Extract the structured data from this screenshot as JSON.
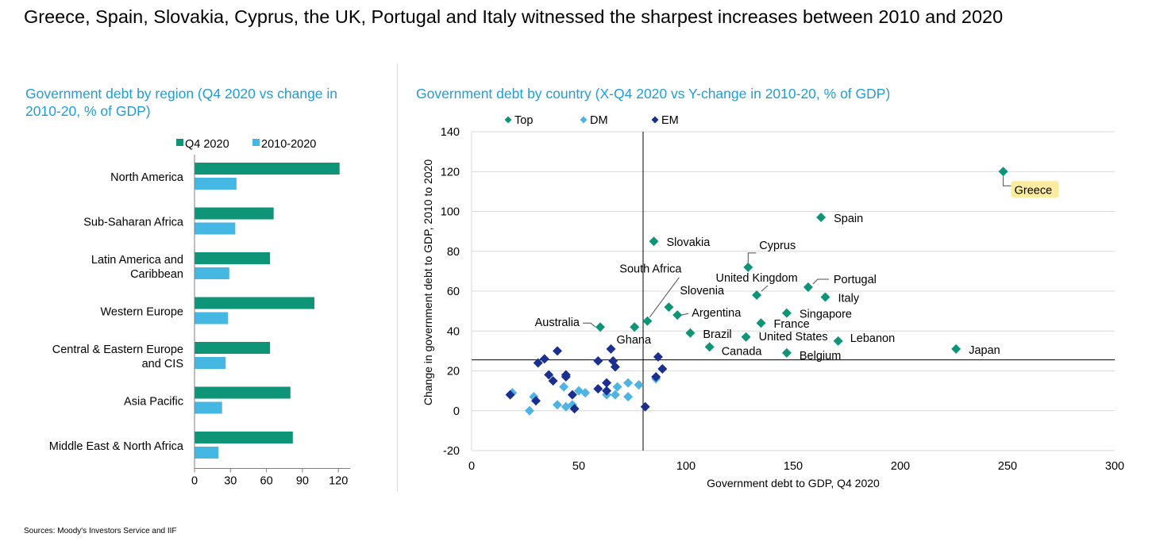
{
  "headline": "Greece, Spain, Slovakia, Cyprus, the UK, Portugal and Italy witnessed the sharpest increases between 2010 and 2020",
  "source": "Sources: Moody's Investors Service and IIF",
  "colors": {
    "top": "#0e9577",
    "dm": "#4fb3e4",
    "em": "#1a2f8f",
    "q4": "#0e9577",
    "change": "#44b7e3",
    "greece_bg": "#fbeca0"
  },
  "chart_data": [
    {
      "type": "bar",
      "title": "Government debt by region (Q4 2020 vs change in 2010-20, % of GDP)",
      "categories": [
        "North America",
        "Sub-Saharan Africa",
        "Latin America and Caribbean",
        "Western Europe",
        "Central & Eastern Europe and CIS",
        "Asia Pacific",
        "Middle East & North Africa"
      ],
      "category_lines": [
        [
          "North America"
        ],
        [
          "Sub-Saharan Africa"
        ],
        [
          "Latin America and",
          "Caribbean"
        ],
        [
          "Western Europe"
        ],
        [
          "Central & Eastern Europe",
          "and CIS"
        ],
        [
          "Asia Pacific"
        ],
        [
          "Middle East & North Africa"
        ]
      ],
      "series": [
        {
          "name": "Q4 2020",
          "values": [
            121,
            66,
            63,
            100,
            63,
            80,
            82
          ]
        },
        {
          "name": "2010-2020",
          "values": [
            35,
            34,
            29,
            28,
            26,
            23,
            20
          ]
        }
      ],
      "xlim": [
        0,
        130
      ],
      "xticks": [
        "0",
        "30",
        "60",
        "90",
        "120"
      ],
      "xtick_values": [
        0,
        30,
        60,
        90,
        120
      ],
      "legend_position": "top"
    },
    {
      "type": "scatter",
      "title": "Government debt by country (X-Q4 2020 vs Y-change in 2010-20, % of GDP)",
      "xlabel": "Government debt to GDP, Q4 2020",
      "ylabel": "Change in government debt to GDP, 2010 to 2020",
      "xlim": [
        0,
        300
      ],
      "ylim": [
        -20,
        140
      ],
      "xticks": [
        "0",
        "50",
        "100",
        "150",
        "200",
        "250",
        "300"
      ],
      "xtick_values": [
        0,
        50,
        100,
        150,
        200,
        250,
        300
      ],
      "yticks": [
        "-20",
        "0",
        "20",
        "40",
        "60",
        "80",
        "100",
        "120",
        "140"
      ],
      "ytick_values": [
        -20,
        0,
        20,
        40,
        60,
        80,
        100,
        120,
        140
      ],
      "reference_lines": {
        "x": 80,
        "y": 25.5
      },
      "legend": [
        "Top",
        "DM",
        "EM"
      ],
      "series": [
        {
          "name": "Top",
          "points": [
            {
              "x": 248,
              "y": 120,
              "label": "Greece"
            },
            {
              "x": 163,
              "y": 97,
              "label": "Spain"
            },
            {
              "x": 85,
              "y": 85,
              "label": "Slovakia"
            },
            {
              "x": 129,
              "y": 72,
              "label": "Cyprus"
            },
            {
              "x": 157,
              "y": 62,
              "label": "Portugal"
            },
            {
              "x": 133,
              "y": 58,
              "label": "United Kingdom"
            },
            {
              "x": 165,
              "y": 57,
              "label": "Italy"
            },
            {
              "x": 92,
              "y": 52,
              "label": "Slovenia"
            },
            {
              "x": 147,
              "y": 49,
              "label": "Singapore"
            },
            {
              "x": 96,
              "y": 48,
              "label": "Argentina"
            },
            {
              "x": 82,
              "y": 45,
              "label": "South Africa"
            },
            {
              "x": 135,
              "y": 44,
              "label": "France"
            },
            {
              "x": 60,
              "y": 42,
              "label": "Australia"
            },
            {
              "x": 76,
              "y": 42,
              "label": ""
            },
            {
              "x": 102,
              "y": 39,
              "label": "Brazil"
            },
            {
              "x": 128,
              "y": 37,
              "label": "United States"
            },
            {
              "x": 171,
              "y": 35,
              "label": "Lebanon"
            },
            {
              "x": 111,
              "y": 32,
              "label": "Canada"
            },
            {
              "x": 226,
              "y": 31,
              "label": "Japan"
            },
            {
              "x": 147,
              "y": 29,
              "label": "Belgium"
            }
          ]
        },
        {
          "name": "DM",
          "points": [
            {
              "x": 19,
              "y": 9
            },
            {
              "x": 27,
              "y": 0
            },
            {
              "x": 29,
              "y": 7
            },
            {
              "x": 40,
              "y": 3
            },
            {
              "x": 43,
              "y": 12
            },
            {
              "x": 44,
              "y": 2
            },
            {
              "x": 47,
              "y": 3
            },
            {
              "x": 50,
              "y": 10
            },
            {
              "x": 53,
              "y": 9
            },
            {
              "x": 63,
              "y": 8
            },
            {
              "x": 67,
              "y": 8
            },
            {
              "x": 68,
              "y": 12
            },
            {
              "x": 73,
              "y": 14
            },
            {
              "x": 73,
              "y": 7
            },
            {
              "x": 78,
              "y": 13
            },
            {
              "x": 86,
              "y": 16
            }
          ]
        },
        {
          "name": "EM",
          "points": [
            {
              "x": 18,
              "y": 8
            },
            {
              "x": 30,
              "y": 5
            },
            {
              "x": 31,
              "y": 24
            },
            {
              "x": 34,
              "y": 26
            },
            {
              "x": 36,
              "y": 18
            },
            {
              "x": 38,
              "y": 15
            },
            {
              "x": 40,
              "y": 30
            },
            {
              "x": 44,
              "y": 18
            },
            {
              "x": 44,
              "y": 17
            },
            {
              "x": 47,
              "y": 8
            },
            {
              "x": 48,
              "y": 1
            },
            {
              "x": 59,
              "y": 25
            },
            {
              "x": 59,
              "y": 11
            },
            {
              "x": 63,
              "y": 14
            },
            {
              "x": 63,
              "y": 10
            },
            {
              "x": 65,
              "y": 31,
              "label": "Ghana"
            },
            {
              "x": 66,
              "y": 25
            },
            {
              "x": 67,
              "y": 22
            },
            {
              "x": 81,
              "y": 2
            },
            {
              "x": 86,
              "y": 17
            },
            {
              "x": 87,
              "y": 27
            },
            {
              "x": 89,
              "y": 21
            }
          ]
        }
      ]
    }
  ]
}
